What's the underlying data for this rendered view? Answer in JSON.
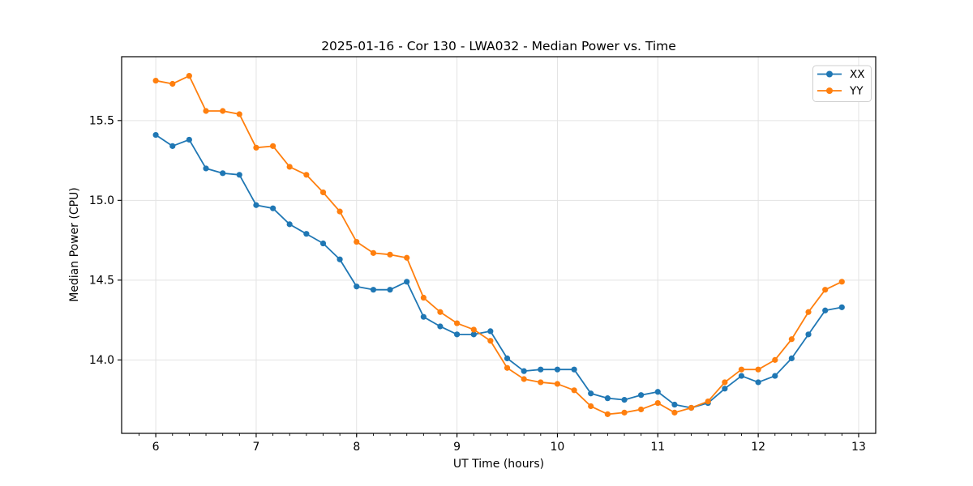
{
  "figure": {
    "background_color": "#ffffff",
    "text_color": "#000000",
    "grid_color": "#e3e3e3",
    "spine_color": "#000000",
    "legend_border_color": "#cfcfcf"
  },
  "chart_data": {
    "type": "line",
    "title": "2025-01-16 - Cor 130 - LWA032 - Median Power vs. Time",
    "xlabel": "UT Time (hours)",
    "ylabel": "Median Power (CPU)",
    "xlim": [
      5.66,
      13.17
    ],
    "ylim": [
      13.54,
      15.9
    ],
    "xticks": [
      6,
      7,
      8,
      9,
      10,
      11,
      12,
      13
    ],
    "yticks": [
      14.0,
      14.5,
      15.0,
      15.5
    ],
    "x_minor_tick_step": 0.16667,
    "grid": true,
    "legend_position": "upper right",
    "x": [
      6.0,
      6.167,
      6.333,
      6.5,
      6.667,
      6.833,
      7.0,
      7.167,
      7.333,
      7.5,
      7.667,
      7.833,
      8.0,
      8.167,
      8.333,
      8.5,
      8.667,
      8.833,
      9.0,
      9.167,
      9.333,
      9.5,
      9.667,
      9.833,
      10.0,
      10.167,
      10.333,
      10.5,
      10.667,
      10.833,
      11.0,
      11.167,
      11.333,
      11.5,
      11.667,
      11.833,
      12.0,
      12.167,
      12.333,
      12.5,
      12.667,
      12.833
    ],
    "series": [
      {
        "name": "XX",
        "color": "#1f77b4",
        "marker": "circle",
        "values": [
          15.41,
          15.34,
          15.38,
          15.2,
          15.17,
          15.16,
          14.97,
          14.95,
          14.85,
          14.79,
          14.73,
          14.63,
          14.46,
          14.44,
          14.44,
          14.49,
          14.27,
          14.21,
          14.16,
          14.16,
          14.18,
          14.01,
          13.93,
          13.94,
          13.94,
          13.94,
          13.79,
          13.76,
          13.75,
          13.78,
          13.8,
          13.72,
          13.7,
          13.73,
          13.82,
          13.9,
          13.86,
          13.9,
          14.01,
          14.16,
          14.31,
          14.33
        ]
      },
      {
        "name": "YY",
        "color": "#ff7f0e",
        "marker": "circle",
        "values": [
          15.75,
          15.73,
          15.78,
          15.56,
          15.56,
          15.54,
          15.33,
          15.34,
          15.21,
          15.16,
          15.05,
          14.93,
          14.74,
          14.67,
          14.66,
          14.64,
          14.39,
          14.3,
          14.23,
          14.19,
          14.12,
          13.95,
          13.88,
          13.86,
          13.85,
          13.81,
          13.71,
          13.66,
          13.67,
          13.69,
          13.73,
          13.67,
          13.7,
          13.74,
          13.86,
          13.94,
          13.94,
          14.0,
          14.13,
          14.3,
          14.44,
          14.49
        ]
      }
    ]
  }
}
